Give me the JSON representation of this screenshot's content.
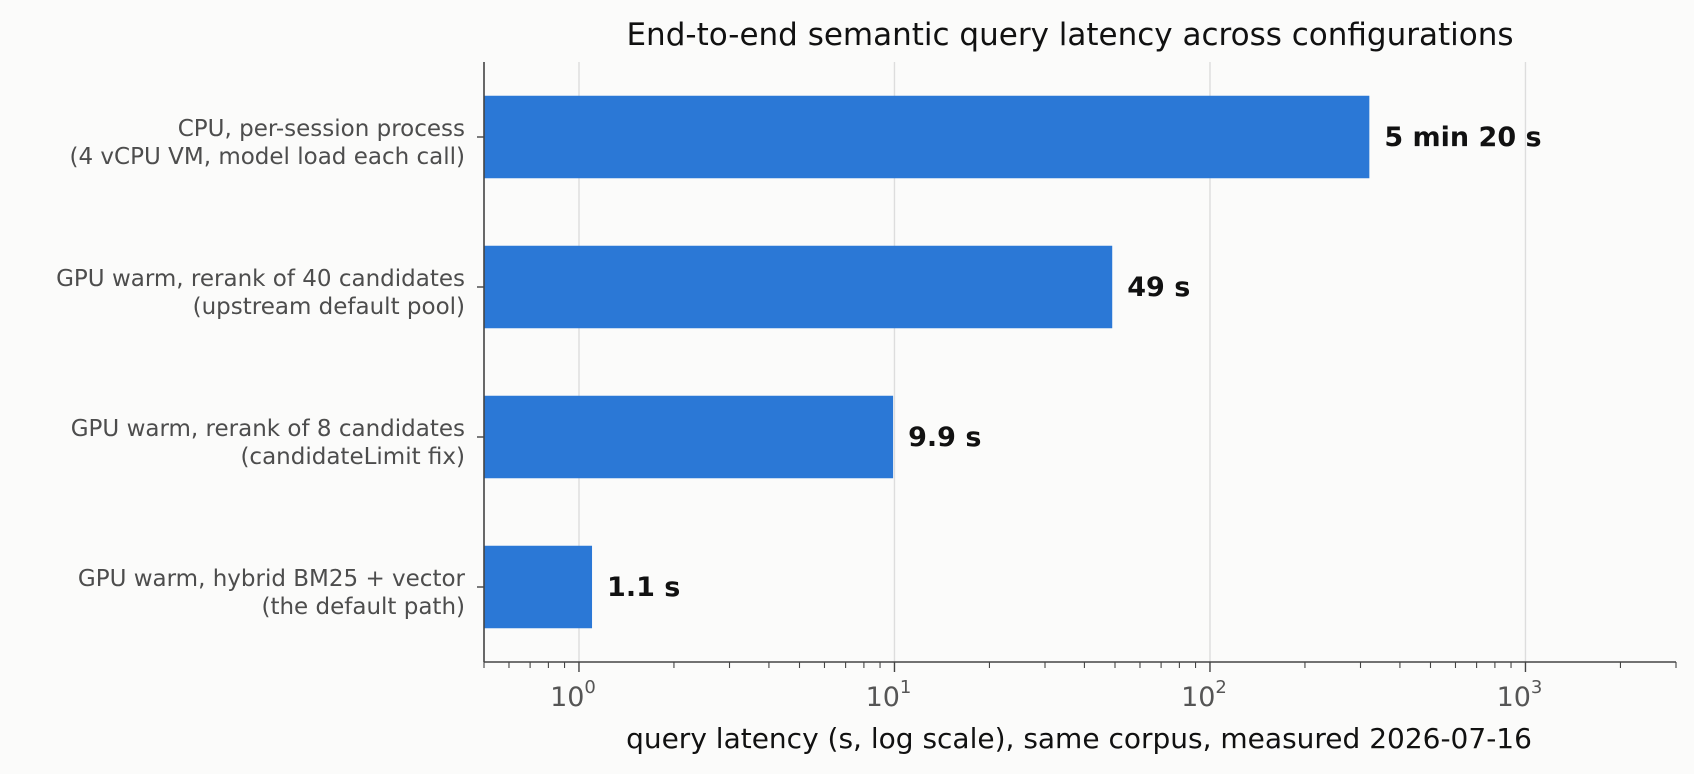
{
  "chart_data": {
    "type": "bar",
    "orientation": "horizontal",
    "title": "End-to-end semantic query latency across configurations",
    "xlabel": "query latency (s, log scale), same corpus, measured 2026-07-16",
    "ylabel": "",
    "x_scale": "log",
    "xlim": [
      0.5,
      3000
    ],
    "x_ticks": [
      {
        "value": 1,
        "base": "10",
        "exp": "0"
      },
      {
        "value": 10,
        "base": "10",
        "exp": "1"
      },
      {
        "value": 100,
        "base": "10",
        "exp": "2"
      },
      {
        "value": 1000,
        "base": "10",
        "exp": "3"
      }
    ],
    "grid": "vertical major gridlines",
    "bar_color": "#2b78d6",
    "categories": [
      {
        "line1": "CPU, per-session process",
        "line2": "(4 vCPU VM, model load each call)"
      },
      {
        "line1": "GPU warm, rerank of 40 candidates",
        "line2": "(upstream default pool)"
      },
      {
        "line1": "GPU warm, rerank of 8 candidates",
        "line2": "(candidateLimit fix)"
      },
      {
        "line1": "GPU warm, hybrid BM25 + vector",
        "line2": "(the default path)"
      }
    ],
    "values": [
      320,
      49,
      9.9,
      1.1
    ],
    "value_labels": [
      "5 min 20 s",
      "49 s",
      "9.9 s",
      "1.1 s"
    ]
  }
}
